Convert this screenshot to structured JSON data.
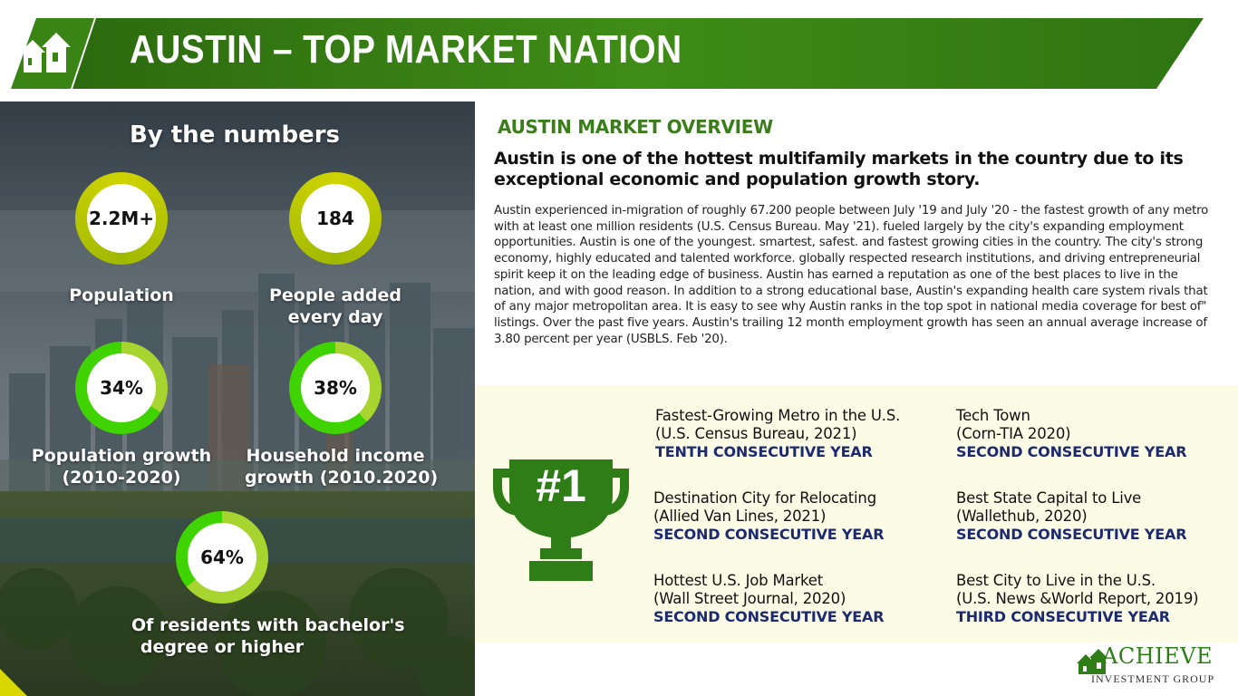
{
  "header": {
    "title": "AUSTIN – TOP MARKET NATION",
    "colors": {
      "green_dark": "#2f6f11",
      "green_light": "#4f9b1a"
    }
  },
  "numbers_panel": {
    "heading": "By the numbers",
    "stats": [
      {
        "value": "2.2M+",
        "label": "Population"
      },
      {
        "value": "184",
        "label_lines": [
          "People added",
          "every day"
        ]
      },
      {
        "value": "34%",
        "label_lines": [
          "Population growth",
          "(2010-2020)"
        ],
        "percent": 34
      },
      {
        "value": "38%",
        "label_lines": [
          "Household income",
          "growth (2010.2020)"
        ],
        "percent": 38
      },
      {
        "value": "64%",
        "label_lines": [
          "Of residents with bachelor's",
          "degree or higher"
        ],
        "percent": 64
      }
    ]
  },
  "overview": {
    "title": "AUSTIN MARKET OVERVIEW",
    "lead": "Austin is one of the hottest multifamily markets in the country due to its exceptional economic and population growth story.",
    "body": "Austin experienced in-migration of roughly 67.200 people between July '19 and July '20 - the fastest growth of any metro with at least one million residents (U.S. Census Bureau. May '21). fueled largely by the city's expanding employment opportunities. Austin is one of the youngest. smartest, safest. and fastest growing cities in the country. The city's strong economy, highly educated and talented workforce. globally respected research institutions, and driving entrepreneurial spirit keep it on the leading edge of business. Austin has earned a reputation as one of the best places to live in the nation, and with good reason. In addition to a strong educational base, Austin's expanding health care system rivals that of any major metropolitan area. It is easy to see why Austin ranks in the top spot in national media coverage for best of\" listings. Over the past five years. Austin's trailing 12 month employment growth has seen an annual average increase of 3.80 percent per year (USBLS. Feb '20)."
  },
  "rankings": {
    "trophy_text": "#1",
    "awards": [
      {
        "title": "Fastest-Growing Metro in the U.S.",
        "source": "(U.S. Census Bureau, 2021)",
        "level": "TENTH CONSECUTIVE YEAR"
      },
      {
        "title": "Tech Town",
        "source": "(Corn-TIA 2020)",
        "level": "SECOND CONSECUTIVE YEAR"
      },
      {
        "title": "Destination City for Relocating",
        "source": "(Allied Van Lines, 2021)",
        "level": "SECOND CONSECUTIVE YEAR"
      },
      {
        "title": "Best State Capital to Live",
        "source": "(Wallethub, 2020)",
        "level": "SECOND CONSECUTIVE YEAR"
      },
      {
        "title": "Hottest U.S. Job Market",
        "source": "(Wall Street Journal, 2020)",
        "level": "SECOND CONSECUTIVE YEAR"
      },
      {
        "title": "Best City to Live in the U.S.",
        "source": "(U.S. News &World Report, 2019)",
        "level": "THIRD CONSECUTIVE YEAR"
      }
    ]
  },
  "logo": {
    "word": "CHIEVE",
    "initial": "A",
    "sub": "INVESTMENT GROUP"
  }
}
